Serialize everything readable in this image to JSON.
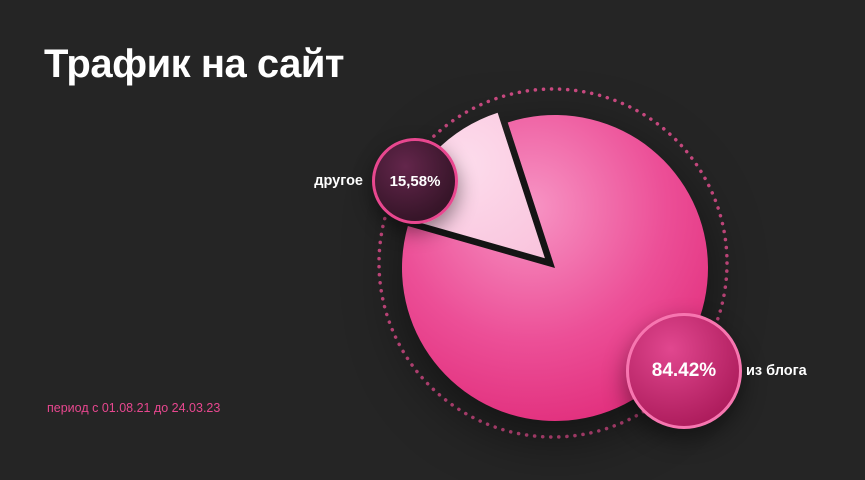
{
  "title": "Трафик на сайт",
  "period": "период с 01.08.21 до 24.03.23",
  "colors": {
    "background": "#252525",
    "title_text": "#ffffff",
    "accent_pink": "#e8478f",
    "slice_main_light": "#f794c4",
    "slice_main_dark": "#df2877",
    "slice_other": "#fbd0e4",
    "dotted_ring": "#cc4a82",
    "badge_small_border": "#e8478f",
    "badge_large_border": "#f776b0"
  },
  "chart_data": {
    "type": "pie",
    "title": "Трафик на сайт",
    "slices": [
      {
        "label": "из блога",
        "value": 84.42,
        "display": "84.42%",
        "explode": 0
      },
      {
        "label": "другое",
        "value": 15.58,
        "display": "15,58%",
        "explode": 14
      }
    ],
    "start_angle": 342,
    "legend_position": "on-chart circular badges",
    "annotations": [
      "период с 01.08.21 до 24.03.23"
    ]
  }
}
